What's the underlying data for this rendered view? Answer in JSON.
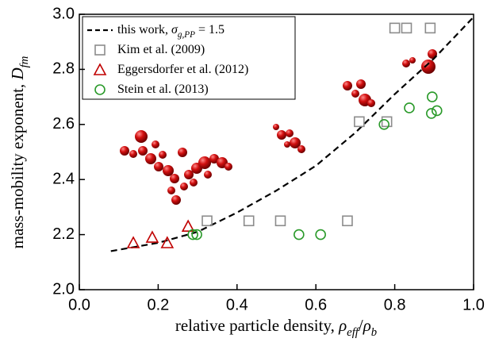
{
  "chart_data": {
    "type": "scatter",
    "xlabel": [
      {
        "text": "relative particle density, "
      },
      {
        "text": "ρ",
        "italic": true
      },
      {
        "text": "eff",
        "italic": true,
        "sub": true
      },
      {
        "text": "/"
      },
      {
        "text": "ρ",
        "italic": true
      },
      {
        "text": "b",
        "italic": true,
        "sub": true
      }
    ],
    "ylabel": [
      {
        "text": "mass-mobility exponent, "
      },
      {
        "text": "D",
        "italic": true
      },
      {
        "text": "fm",
        "italic": true,
        "sub": true
      }
    ],
    "xlim": [
      0,
      1
    ],
    "ylim": [
      2,
      3
    ],
    "xticks": [
      {
        "value": 0,
        "label": "0.0"
      },
      0.2,
      0.4,
      0.6,
      0.8,
      {
        "value": 1,
        "label": "1.0"
      }
    ],
    "yticks": [
      {
        "value": 2,
        "label": "2.0"
      },
      2.2,
      2.4,
      2.6,
      2.8,
      {
        "value": 3,
        "label": "3.0"
      }
    ],
    "series": [
      {
        "name": [
          {
            "text": "this work, "
          },
          {
            "text": "σ",
            "italic": true
          },
          {
            "text": "g,PP",
            "italic": true,
            "sub": true
          },
          {
            "text": " = 1.5"
          }
        ],
        "style": "dashed-line",
        "color": "#000000",
        "x": [
          0.08,
          0.2,
          0.3,
          0.4,
          0.5,
          0.6,
          0.7,
          0.8,
          0.9,
          1.0
        ],
        "values": [
          2.14,
          2.17,
          2.21,
          2.28,
          2.36,
          2.45,
          2.57,
          2.71,
          2.84,
          2.99
        ]
      },
      {
        "name": [
          {
            "text": "Kim et al. (2009)"
          }
        ],
        "marker": "square",
        "color": "#8c8c8c",
        "x": [
          0.324,
          0.43,
          0.51,
          0.68,
          0.71,
          0.78,
          0.8,
          0.83,
          0.89
        ],
        "values": [
          2.25,
          2.25,
          2.25,
          2.25,
          2.61,
          2.61,
          2.95,
          2.95,
          2.95
        ]
      },
      {
        "name": [
          {
            "text": "Eggersdorfer et al. (2012)"
          }
        ],
        "marker": "triangle",
        "color": "#c00000",
        "x": [
          0.137,
          0.185,
          0.223,
          0.276
        ],
        "values": [
          2.17,
          2.19,
          2.17,
          2.23
        ]
      },
      {
        "name": [
          {
            "text": "Stein et al. (2013)"
          }
        ],
        "marker": "circle",
        "color": "#2a9a2a",
        "x": [
          0.288,
          0.298,
          0.557,
          0.612,
          0.773,
          0.837,
          0.895,
          0.893,
          0.907
        ],
        "values": [
          2.2,
          2.2,
          2.2,
          2.2,
          2.6,
          2.66,
          2.7,
          2.64,
          2.65
        ]
      }
    ]
  }
}
